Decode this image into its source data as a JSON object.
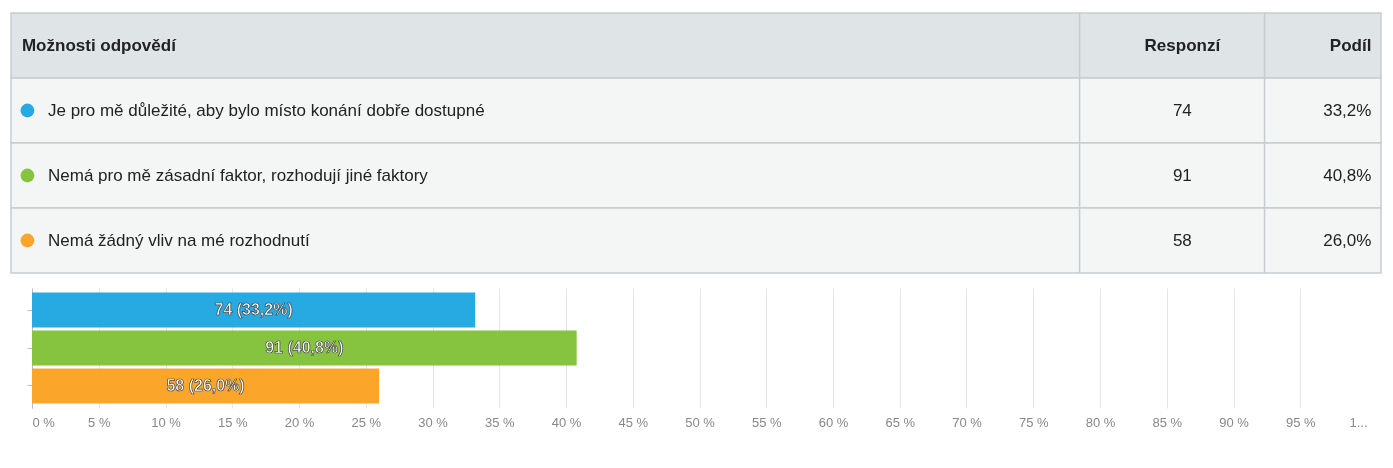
{
  "chart_data": [
    {
      "type": "other",
      "annotations": [
        "Možnosti odpovědí",
        "Responzí",
        "Podíl",
        "Je pro mě důležité, aby bylo místo konání dobře dostupné",
        "74",
        "33,2%",
        "Nemá pro mě zásadní faktor, rozhodují jiné faktory",
        "91",
        "40,8%",
        "Nemá žádný vliv na mé rozhodnutí",
        "58",
        "26,0%"
      ]
    },
    {
      "type": "bar",
      "orientation": "horizontal",
      "categories": [
        null,
        null,
        null
      ],
      "values": [
        33.2,
        40.8,
        26.0
      ],
      "colors": [
        "#27a9e1",
        "#86c440",
        "#fba62a"
      ],
      "value_labels": [
        "74 (33,2%)",
        "91 (40,8%)",
        "58 (26,0%)"
      ],
      "xlim": [
        0,
        100
      ],
      "xticks": [
        {
          "value": 0,
          "label": "0 %"
        },
        {
          "value": 5,
          "label": "5 %"
        },
        {
          "value": 10,
          "label": "10 %"
        },
        {
          "value": 15,
          "label": "15 %"
        },
        {
          "value": 20,
          "label": "20 %"
        },
        {
          "value": 25,
          "label": "25 %"
        },
        {
          "value": 30,
          "label": "30 %"
        },
        {
          "value": 35,
          "label": "35 %"
        },
        {
          "value": 40,
          "label": "40 %"
        },
        {
          "value": 45,
          "label": "45 %"
        },
        {
          "value": 50,
          "label": "50 %"
        },
        {
          "value": 55,
          "label": "55 %"
        },
        {
          "value": 60,
          "label": "60 %"
        },
        {
          "value": 65,
          "label": "65 %"
        },
        {
          "value": 70,
          "label": "70 %"
        },
        {
          "value": 75,
          "label": "75 %"
        },
        {
          "value": 80,
          "label": "80 %"
        },
        {
          "value": 85,
          "label": "85 %"
        },
        {
          "value": 90,
          "label": "90 %"
        },
        {
          "value": 95,
          "label": "95 %"
        },
        {
          "value": 100,
          "label": "1..."
        }
      ],
      "grid": "x",
      "tick_labels": "x"
    }
  ]
}
